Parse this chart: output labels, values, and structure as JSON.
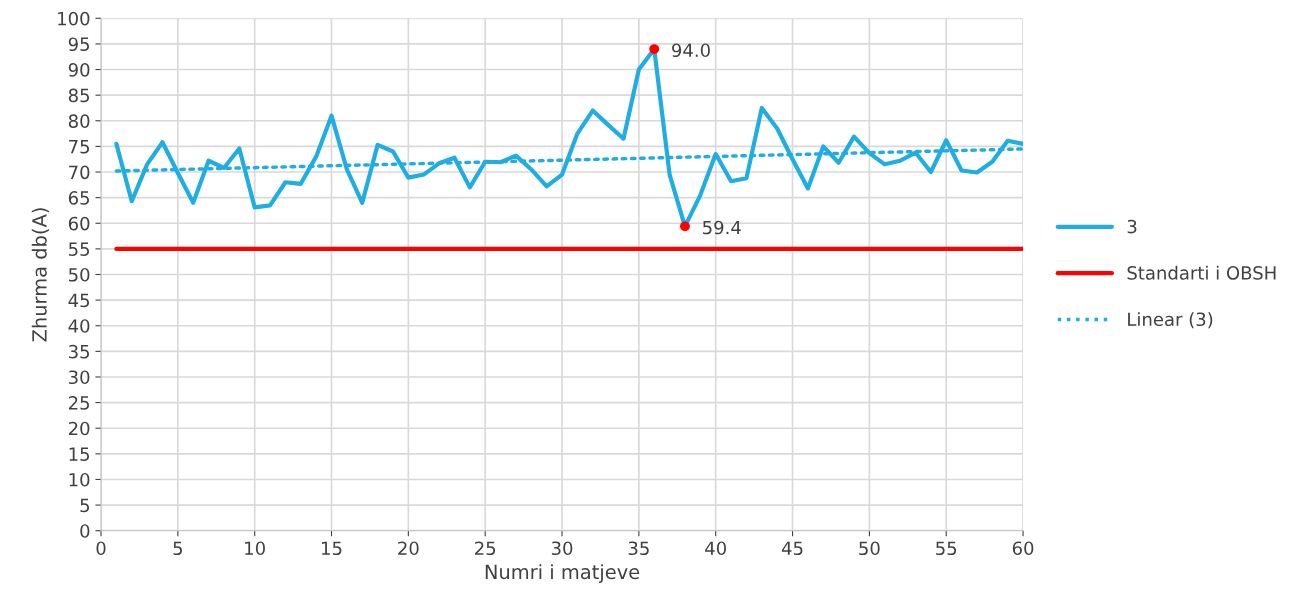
{
  "chart_data": {
    "type": "line",
    "xlabel": "Numri i matjeve",
    "ylabel": "Zhurma db(A)",
    "xlim": [
      0,
      60
    ],
    "xticks": [
      0,
      5,
      10,
      15,
      20,
      25,
      30,
      35,
      40,
      45,
      50,
      55,
      60
    ],
    "ylim": [
      0,
      100
    ],
    "yticks": [
      0,
      5,
      10,
      15,
      20,
      25,
      30,
      35,
      40,
      45,
      50,
      55,
      60,
      65,
      70,
      75,
      80,
      85,
      90,
      95,
      100
    ],
    "grid": true,
    "legend": "right",
    "series": [
      {
        "name": "3",
        "color": "#1fade4",
        "line_style": "solid",
        "x": [
          1,
          2,
          3,
          4,
          5,
          6,
          7,
          8,
          9,
          10,
          11,
          12,
          13,
          14,
          15,
          16,
          17,
          18,
          19,
          20,
          21,
          22,
          23,
          24,
          25,
          26,
          27,
          28,
          29,
          30,
          31,
          32,
          33,
          34,
          35,
          36,
          37,
          38,
          39,
          40,
          41,
          42,
          43,
          44,
          45,
          46,
          47,
          48,
          49,
          50,
          51,
          52,
          53,
          54,
          55,
          56,
          57,
          58,
          59,
          60
        ],
        "values": [
          75.5,
          64.3,
          71.5,
          75.8,
          69.8,
          64,
          72.2,
          70.8,
          74.6,
          63.1,
          63.5,
          68,
          67.7,
          73,
          81,
          70.5,
          64,
          75.3,
          74,
          68.9,
          69.5,
          71.7,
          72.8,
          67,
          72,
          71.9,
          73.2,
          70.5,
          67.2,
          69.5,
          77.5,
          82,
          79.2,
          76.5,
          90,
          94,
          69.5,
          59.4,
          65.5,
          73.5,
          68.2,
          68.8,
          82.5,
          78.5,
          72.5,
          66.8,
          75,
          71.8,
          76.9,
          73.7,
          71.5,
          72.2,
          73.8,
          70,
          76.2,
          70.3,
          69.9,
          72,
          76.1,
          75.5
        ]
      },
      {
        "name": "Standarti i OBSH",
        "color": "#ff0000",
        "line_style": "solid",
        "x": [
          1,
          60
        ],
        "values": [
          55,
          55
        ]
      },
      {
        "name": "Linear (3)",
        "color": "#1fade4",
        "line_style": "dotted",
        "x": [
          1,
          60
        ],
        "values": [
          70.2,
          74.5
        ]
      },
      {
        "type": "scatter",
        "color": "#ff0000",
        "marker": "circle",
        "x": [
          36,
          38
        ],
        "values": [
          94.0,
          59.4
        ],
        "value_labels": [
          "94.0",
          "59.4"
        ]
      }
    ]
  }
}
